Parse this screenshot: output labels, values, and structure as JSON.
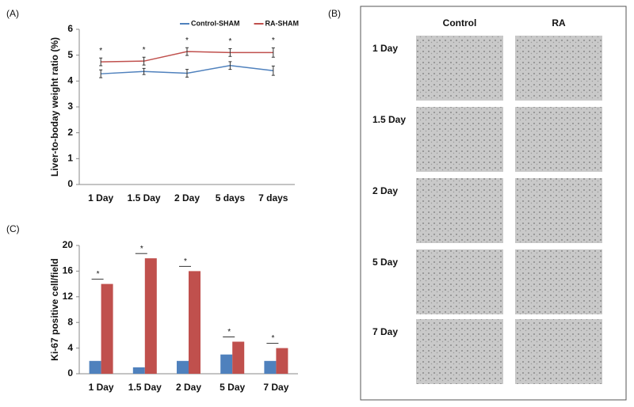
{
  "panel_labels": [
    "(A)",
    "(B)",
    "(C)"
  ],
  "chart_data": [
    {
      "type": "line",
      "y_label": "Liver-to-boday weight ratio (%)",
      "categories": [
        "1 Day",
        "1.5 Day",
        "2 Day",
        "5 days",
        "7 days"
      ],
      "series": [
        {
          "name": "Control-SHAM",
          "color": "#4f81bd",
          "values": [
            4.28,
            4.37,
            4.3,
            4.6,
            4.4
          ],
          "errors": [
            0.15,
            0.12,
            0.15,
            0.15,
            0.18
          ]
        },
        {
          "name": "RA-SHAM",
          "color": "#c0504d",
          "values": [
            4.74,
            4.77,
            5.14,
            5.1,
            5.1
          ],
          "errors": [
            0.15,
            0.15,
            0.15,
            0.15,
            0.18
          ]
        }
      ],
      "significance": [
        "*",
        "*",
        "*",
        "*",
        "*"
      ],
      "ylim": [
        0,
        6
      ],
      "yticks": [
        0,
        1,
        2,
        3,
        4,
        5,
        6
      ],
      "legend": "top"
    },
    {
      "type": "bar",
      "y_label": "Ki-67 positive cell/field",
      "categories": [
        "1 Day",
        "1.5 Day",
        "2 Day",
        "5 Day",
        "7 Day"
      ],
      "series": [
        {
          "color": "#4f81bd",
          "values": [
            2,
            1,
            2,
            3,
            2
          ]
        },
        {
          "color": "#c0504d",
          "values": [
            14,
            18,
            16,
            5,
            4
          ]
        }
      ],
      "significance": [
        "*",
        "*",
        "*",
        "*",
        "*"
      ],
      "ylim": [
        0,
        20
      ],
      "yticks": [
        0,
        4,
        8,
        12,
        16,
        20
      ]
    }
  ],
  "histology": {
    "columns": [
      "Control",
      "RA"
    ],
    "rows": [
      "1 Day",
      "1.5 Day",
      "2 Day",
      "5 Day",
      "7 Day"
    ]
  }
}
